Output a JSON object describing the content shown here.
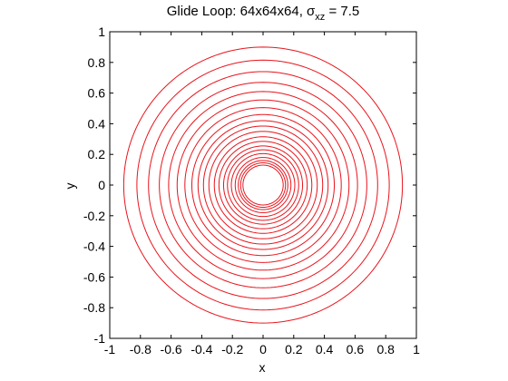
{
  "chart_data": {
    "type": "line",
    "title": {
      "prefix": "Glide Loop: 64x64x64, ",
      "symbol": "σ",
      "subscript": "xz",
      "suffix": " = 7.5"
    },
    "xlabel": "x",
    "ylabel": "y",
    "xlim": [
      -1,
      1
    ],
    "ylim": [
      -1,
      1
    ],
    "xticks": [
      -1,
      -0.8,
      -0.6,
      -0.4,
      -0.2,
      0,
      0.2,
      0.4,
      0.6,
      0.8,
      1
    ],
    "yticks": [
      -1,
      -0.8,
      -0.6,
      -0.4,
      -0.2,
      0,
      0.2,
      0.4,
      0.6,
      0.8,
      1
    ],
    "xtick_labels": [
      "-1",
      "-0.8",
      "-0.6",
      "-0.4",
      "-0.2",
      "0",
      "0.2",
      "0.4",
      "0.6",
      "0.8",
      "1"
    ],
    "ytick_labels": [
      "-1",
      "-0.8",
      "-0.6",
      "-0.4",
      "-0.2",
      "0",
      "0.2",
      "0.4",
      "0.6",
      "0.8",
      "1"
    ],
    "grid": false,
    "series_color": "#e8141c",
    "loop_radii": [
      0.9,
      0.815,
      0.74,
      0.67,
      0.61,
      0.555,
      0.505,
      0.46,
      0.42,
      0.385,
      0.35,
      0.315,
      0.285,
      0.255,
      0.23,
      0.205,
      0.18,
      0.16,
      0.145,
      0.13
    ],
    "open_loop_cut_x": 0.98
  }
}
